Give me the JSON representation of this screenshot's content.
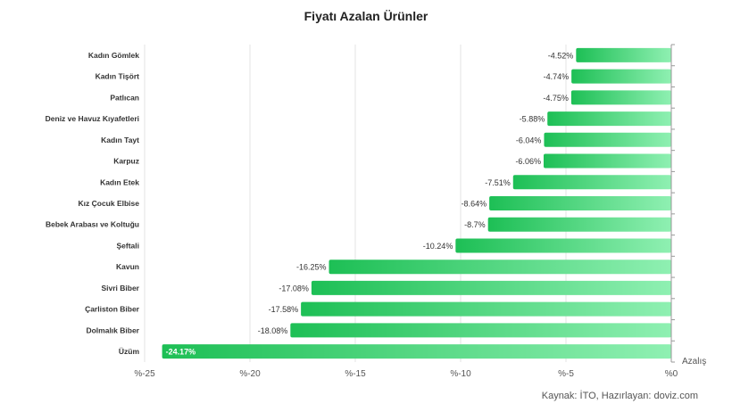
{
  "chart_data": {
    "type": "bar",
    "orientation": "horizontal",
    "title": "Fiyatı Azalan Ürünler",
    "source": "Kaynak: İTO, Hazırlayan: doviz.com",
    "axis_label": "Azalış",
    "categories": [
      "Kadın Gömlek",
      "Kadın Tişört",
      "Patlıcan",
      "Deniz ve Havuz Kıyafetleri",
      "Kadın Tayt",
      "Karpuz",
      "Kadın Etek",
      "Kız Çocuk Elbise",
      "Bebek Arabası ve Koltuğu",
      "Şeftali",
      "Kavun",
      "Sivri Biber",
      "Çarliston Biber",
      "Dolmalık Biber",
      "Üzüm"
    ],
    "values": [
      -4.52,
      -4.74,
      -4.75,
      -5.88,
      -6.04,
      -6.06,
      -7.51,
      -8.64,
      -8.7,
      -10.24,
      -16.25,
      -17.08,
      -17.58,
      -18.08,
      -24.17
    ],
    "value_labels": [
      "-4.52%",
      "-4.74%",
      "-4.75%",
      "-5.88%",
      "-6.04%",
      "-6.06%",
      "-7.51%",
      "-8.64%",
      "-8.7%",
      "-10.24%",
      "-16.25%",
      "-17.08%",
      "-17.58%",
      "-18.08%",
      "-24.17%"
    ],
    "x_ticks": [
      -25,
      -20,
      -15,
      -10,
      -5,
      0
    ],
    "x_tick_labels": [
      "%-25",
      "%-20",
      "%-15",
      "%-10",
      "%-5",
      "%0"
    ],
    "xlim": [
      -25,
      0
    ],
    "grid": true,
    "colors": {
      "bar_start": "#1dbf55",
      "bar_end": "#8ff0b2",
      "grid": "#e3e3e3",
      "axis": "#999999",
      "category_text": "#333333",
      "value_text": "#333333",
      "value_text_inside": "#ffffff"
    }
  }
}
